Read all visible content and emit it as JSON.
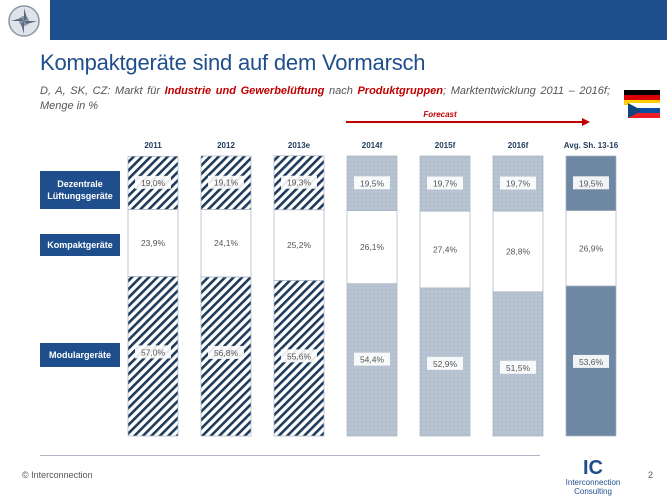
{
  "header": {
    "title": "Kompaktgeräte sind auf dem Vormarsch",
    "subtitle_parts": [
      {
        "text": "D, A, SK, CZ: Markt  für ",
        "highlight": false
      },
      {
        "text": "Industrie und Gewerbelüftung",
        "highlight": true
      },
      {
        "text": " nach ",
        "highlight": false
      },
      {
        "text": "Produktgruppen",
        "highlight": true
      },
      {
        "text": "; Marktentwicklung 2011 – 2016f; Menge in %",
        "highlight": false
      }
    ],
    "forecast_label": "Forecast"
  },
  "footer": {
    "copyright": "© Interconnection",
    "brand_mark": "IC",
    "brand_line1": "Interconnection",
    "brand_line2": "Consulting",
    "page_number": "2"
  },
  "chart_data": {
    "type": "bar",
    "stacked": true,
    "percent": true,
    "categories": [
      "2011",
      "2012",
      "2013e",
      "2014f",
      "2015f",
      "2016f",
      "Avg. Sh. 13-16"
    ],
    "series": [
      {
        "name": "Modulargeräte",
        "values": [
          57.0,
          56.8,
          55.6,
          54.4,
          52.9,
          51.5,
          53.6
        ],
        "labels": [
          "57,0%",
          "56,8%",
          "55,6%",
          "54,4%",
          "52,9%",
          "51,5%",
          "53,6%"
        ]
      },
      {
        "name": "Kompaktgeräte",
        "values": [
          23.9,
          24.1,
          25.2,
          26.1,
          27.4,
          28.8,
          26.9
        ],
        "labels": [
          "23,9%",
          "24,1%",
          "25,2%",
          "26,1%",
          "27,4%",
          "28,8%",
          "26,9%"
        ]
      },
      {
        "name": "Dezentrale Lüftungsgeräte",
        "values": [
          19.0,
          19.1,
          19.3,
          19.5,
          19.7,
          19.7,
          19.5
        ],
        "labels": [
          "19,0%",
          "19,1%",
          "19,3%",
          "19,5%",
          "19,7%",
          "19,7%",
          "19,5%"
        ]
      }
    ],
    "row_labels": [
      "Dezentrale Lüftungsgeräte",
      "Kompaktgeräte",
      "Modulargeräte"
    ],
    "ylim": [
      0,
      100
    ],
    "colors": {
      "actual": "#1f3b5c",
      "forecast": "#b8c4d2",
      "average": "#6e87a2",
      "accent": "#1f4e8c",
      "highlight": "#c00000"
    }
  }
}
